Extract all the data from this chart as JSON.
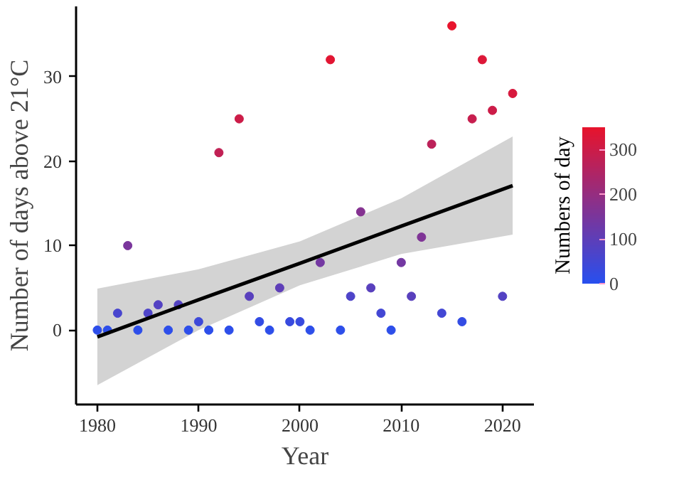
{
  "chart_data": {
    "type": "scatter",
    "xlabel": "Year",
    "ylabel": "Number of days above 21°C",
    "clabel": "Numbers of day",
    "xlim": [
      1977.9,
      2023.1
    ],
    "ylim": [
      -8.8,
      38.3
    ],
    "xticks": [
      1980,
      1990,
      2000,
      2010,
      2020
    ],
    "yticks": [
      0,
      10,
      20,
      30
    ],
    "clim": [
      0,
      350
    ],
    "cticks": [
      0,
      100,
      200,
      300
    ],
    "grid": false,
    "series": [
      {
        "marker": "circle",
        "x": [
          1980,
          1981,
          1982,
          1983,
          1984,
          1985,
          1986,
          1987,
          1988,
          1989,
          1990,
          1991,
          1992,
          1993,
          1994,
          1995,
          1996,
          1997,
          1998,
          1999,
          2000,
          2001,
          2002,
          2003,
          2004,
          2005,
          2006,
          2007,
          2008,
          2009,
          2010,
          2011,
          2012,
          2013,
          2014,
          2015,
          2016,
          2017,
          2018,
          2019,
          2020,
          2021
        ],
        "values": [
          0,
          0,
          2,
          10,
          0,
          2,
          3,
          0,
          3,
          0,
          1,
          0,
          21,
          0,
          25,
          4,
          1,
          0,
          5,
          1,
          1,
          0,
          8,
          32,
          0,
          4,
          14,
          5,
          2,
          0,
          8,
          4,
          11,
          22,
          2,
          36,
          1,
          25,
          32,
          26,
          4,
          28
        ],
        "cvalues": [
          10,
          10,
          60,
          150,
          10,
          70,
          80,
          10,
          80,
          10,
          40,
          10,
          280,
          10,
          300,
          90,
          20,
          10,
          100,
          30,
          30,
          10,
          140,
          340,
          10,
          70,
          170,
          90,
          50,
          10,
          140,
          90,
          160,
          270,
          50,
          350,
          20,
          290,
          330,
          300,
          80,
          320
        ],
        "colors": [
          "#2d4eea",
          "#2d4eea",
          "#4845ce",
          "#7a369c",
          "#2d4eea",
          "#4e44c9",
          "#5342c3",
          "#2d4eea",
          "#5342c3",
          "#2d4eea",
          "#3d49d9",
          "#2d4eea",
          "#c12054",
          "#2d4eea",
          "#cc1c48",
          "#5940bd",
          "#334ce4",
          "#2d4eea",
          "#5e3eb8",
          "#384adf",
          "#384adf",
          "#2d4eea",
          "#7438a2",
          "#e21532",
          "#2d4eea",
          "#4e44c9",
          "#853291",
          "#5940bd",
          "#4347d4",
          "#2d4eea",
          "#7438a2",
          "#5940bd",
          "#7f3496",
          "#bc2159",
          "#4347d4",
          "#e8142d",
          "#334ce4",
          "#c71e4e",
          "#dd1738",
          "#cc1c48",
          "#5342c3",
          "#d7193d"
        ]
      },
      {
        "type": "line",
        "marker": "none",
        "x": [
          1980,
          1990,
          2000,
          2010,
          2021
        ],
        "values": [
          -0.8,
          3.6,
          7.9,
          12.3,
          17.1
        ],
        "lower": [
          -6.5,
          0.0,
          5.3,
          9.0,
          11.3
        ],
        "upper": [
          4.9,
          7.2,
          10.5,
          15.6,
          22.9
        ],
        "color": "#000000"
      }
    ]
  }
}
